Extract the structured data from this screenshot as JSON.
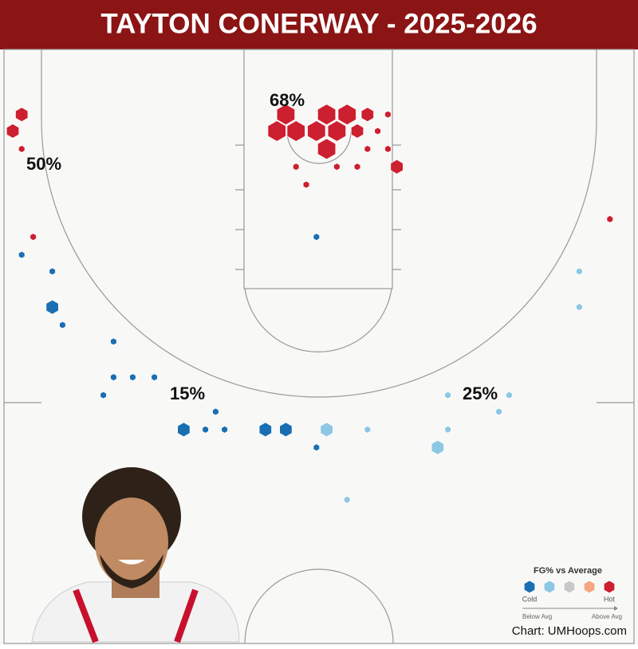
{
  "chart_data": {
    "type": "hexbin",
    "title": "TAYTON CONERWAY - 2025-2026",
    "zone_labels": [
      "68%",
      "50%",
      "15%",
      "25%"
    ],
    "credit": "Chart: UMHoops.com",
    "xlim": [
      -25,
      25
    ],
    "ylim": [
      0,
      46
    ],
    "legend": {
      "title": "FG% vs Average",
      "colors": [
        "#1a6fb3",
        "#8ec7e3",
        "#c8c8c8",
        "#f4a582",
        "#cc1f2f"
      ],
      "low": "Cold",
      "high": "Hot",
      "scale_low": "Below Avg",
      "scale_high": "Above Avg"
    },
    "points": {
      "x": [
        -2.6,
        0.6,
        2.2,
        -3.3,
        -1.8,
        -0.2,
        1.4,
        0.6,
        3.8,
        3.0,
        6.1,
        5.4,
        4.6,
        3.8,
        5.4,
        -1.8,
        1.4,
        3.0,
        -1.0,
        -23.3,
        -24.0,
        -23.3,
        -22.4,
        22.8,
        -0.2,
        -23.3,
        -20.9,
        -20.9,
        -20.1,
        -16.1,
        -16.1,
        -14.6,
        -12.9,
        -16.9,
        -8.1,
        -10.6,
        -8.9,
        -7.4,
        -4.2,
        -2.6,
        -0.2,
        0.6,
        3.8,
        10.1,
        14.9,
        14.1,
        10.1,
        9.3,
        2.2,
        20.4,
        20.4
      ],
      "y": [
        5.1,
        5.1,
        5.1,
        6.4,
        6.4,
        6.4,
        6.4,
        7.8,
        5.1,
        6.4,
        9.2,
        5.1,
        6.4,
        7.8,
        7.8,
        9.2,
        9.2,
        9.2,
        10.6,
        5.1,
        6.4,
        7.8,
        14.7,
        13.3,
        14.7,
        16.1,
        17.4,
        20.2,
        21.6,
        22.9,
        25.7,
        25.7,
        25.7,
        27.1,
        28.4,
        29.8,
        29.8,
        29.8,
        29.8,
        29.8,
        31.2,
        29.8,
        29.8,
        27.1,
        27.1,
        28.4,
        29.8,
        31.2,
        35.3,
        17.4,
        20.2
      ],
      "size": [
        3,
        3,
        3,
        3,
        3,
        3,
        3,
        3,
        2,
        2,
        2,
        1,
        1,
        1,
        1,
        1,
        1,
        1,
        1,
        2,
        2,
        1,
        1,
        1,
        1,
        1,
        1,
        2,
        1,
        1,
        1,
        1,
        1,
        1,
        1,
        2,
        1,
        1,
        2,
        2,
        1,
        2,
        1,
        1,
        1,
        1,
        1,
        2,
        1,
        1,
        1
      ],
      "level": [
        4,
        4,
        4,
        4,
        4,
        4,
        4,
        4,
        4,
        4,
        4,
        4,
        4,
        4,
        4,
        4,
        4,
        4,
        4,
        4,
        4,
        4,
        4,
        4,
        0,
        0,
        0,
        0,
        0,
        0,
        0,
        0,
        0,
        0,
        0,
        0,
        0,
        0,
        0,
        0,
        0,
        1,
        1,
        1,
        1,
        1,
        1,
        1,
        1,
        1,
        1
      ]
    }
  }
}
